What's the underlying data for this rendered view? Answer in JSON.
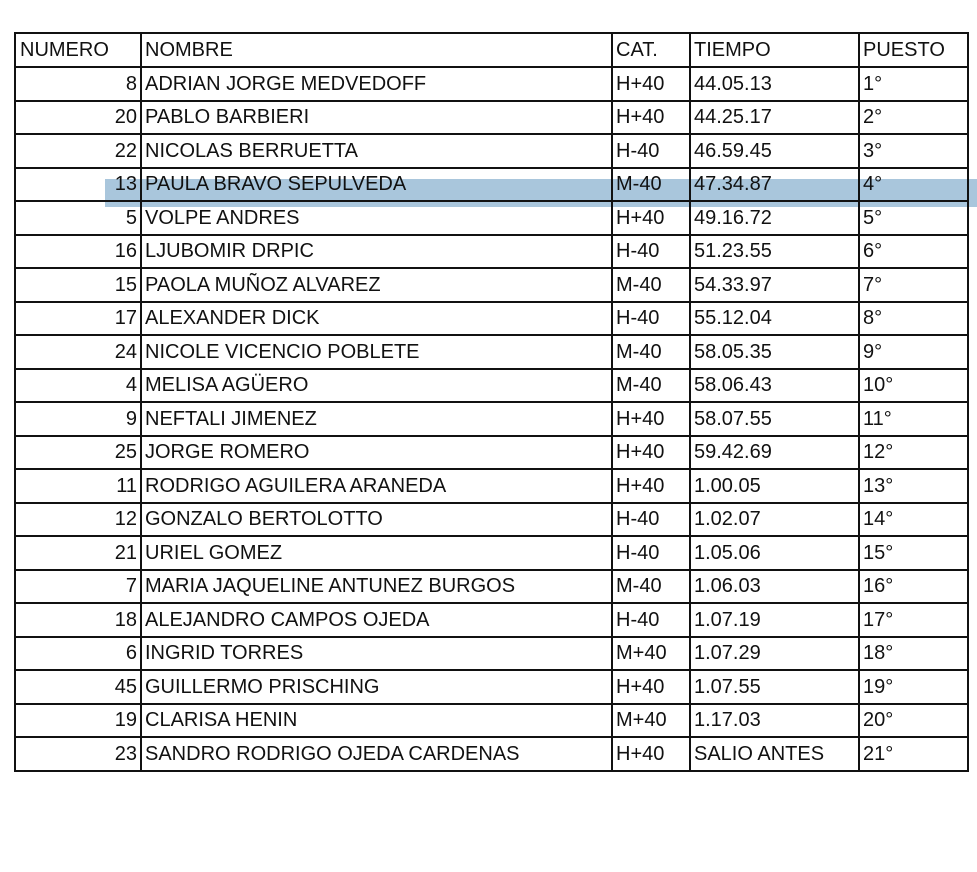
{
  "headers": [
    "NUMERO",
    "NOMBRE",
    "CAT.",
    "TIEMPO",
    "PUESTO"
  ],
  "highlight_color": "#a9c6dc",
  "highlighted_row": 3,
  "rows": [
    {
      "numero": "8",
      "nombre": "ADRIAN JORGE MEDVEDOFF",
      "cat": "H+40",
      "tiempo": "44.05.13",
      "puesto": "1°"
    },
    {
      "numero": "20",
      "nombre": "PABLO BARBIERI",
      "cat": "H+40",
      "tiempo": "44.25.17",
      "puesto": "2°"
    },
    {
      "numero": "22",
      "nombre": "NICOLAS BERRUETTA",
      "cat": "H-40",
      "tiempo": "46.59.45",
      "puesto": "3°"
    },
    {
      "numero": "13",
      "nombre": "PAULA BRAVO SEPULVEDA",
      "cat": "M-40",
      "tiempo": "47.34.87",
      "puesto": "4°"
    },
    {
      "numero": "5",
      "nombre": "VOLPE ANDRES",
      "cat": "H+40",
      "tiempo": "49.16.72",
      "puesto": "5°"
    },
    {
      "numero": "16",
      "nombre": "LJUBOMIR DRPIC",
      "cat": "H-40",
      "tiempo": "51.23.55",
      "puesto": "6°"
    },
    {
      "numero": "15",
      "nombre": "PAOLA MUÑOZ ALVAREZ",
      "cat": "M-40",
      "tiempo": "54.33.97",
      "puesto": "7°"
    },
    {
      "numero": "17",
      "nombre": "ALEXANDER DICK",
      "cat": "H-40",
      "tiempo": "55.12.04",
      "puesto": "8°"
    },
    {
      "numero": "24",
      "nombre": "NICOLE VICENCIO POBLETE",
      "cat": "M-40",
      "tiempo": "58.05.35",
      "puesto": "9°"
    },
    {
      "numero": "4",
      "nombre": "MELISA AGÜERO",
      "cat": "M-40",
      "tiempo": "58.06.43",
      "puesto": "10°"
    },
    {
      "numero": "9",
      "nombre": "NEFTALI JIMENEZ",
      "cat": "H+40",
      "tiempo": "58.07.55",
      "puesto": "11°"
    },
    {
      "numero": "25",
      "nombre": "JORGE ROMERO",
      "cat": "H+40",
      "tiempo": "59.42.69",
      "puesto": "12°"
    },
    {
      "numero": "11",
      "nombre": "RODRIGO AGUILERA ARANEDA",
      "cat": "H+40",
      "tiempo": "1.00.05",
      "puesto": "13°"
    },
    {
      "numero": "12",
      "nombre": "GONZALO BERTOLOTTO",
      "cat": "H-40",
      "tiempo": "1.02.07",
      "puesto": "14°"
    },
    {
      "numero": "21",
      "nombre": "URIEL GOMEZ",
      "cat": "H-40",
      "tiempo": "1.05.06",
      "puesto": "15°"
    },
    {
      "numero": "7",
      "nombre": "MARIA JAQUELINE ANTUNEZ BURGOS",
      "cat": "M-40",
      "tiempo": "1.06.03",
      "puesto": "16°"
    },
    {
      "numero": "18",
      "nombre": "ALEJANDRO CAMPOS OJEDA",
      "cat": "H-40",
      "tiempo": "1.07.19",
      "puesto": "17°"
    },
    {
      "numero": "6",
      "nombre": "INGRID TORRES",
      "cat": "M+40",
      "tiempo": "1.07.29",
      "puesto": "18°"
    },
    {
      "numero": "45",
      "nombre": "GUILLERMO PRISCHING",
      "cat": "H+40",
      "tiempo": "1.07.55",
      "puesto": "19°"
    },
    {
      "numero": "19",
      "nombre": "CLARISA HENIN",
      "cat": "M+40",
      "tiempo": "1.17.03",
      "puesto": "20°"
    },
    {
      "numero": "23",
      "nombre": "SANDRO RODRIGO OJEDA CARDENAS",
      "cat": "H+40",
      "tiempo": "SALIO ANTES",
      "puesto": "21°"
    }
  ]
}
